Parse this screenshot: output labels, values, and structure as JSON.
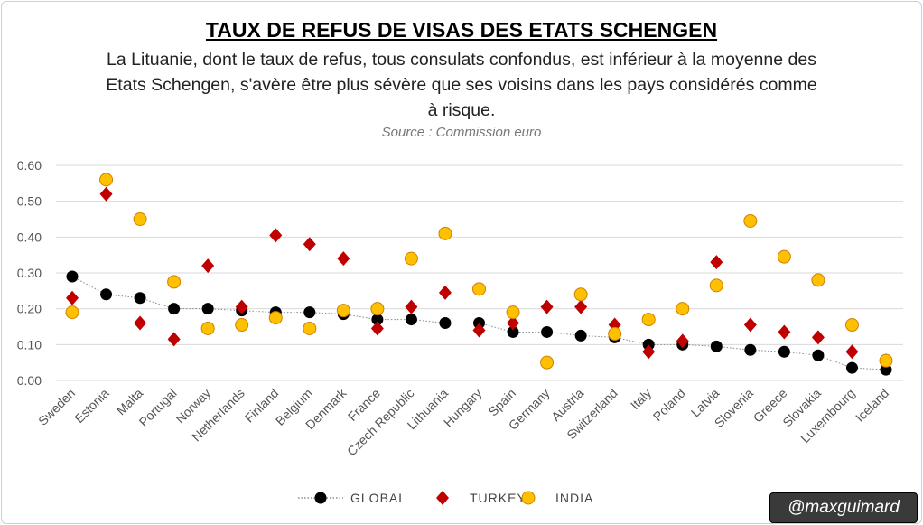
{
  "title": "TAUX DE REFUS DE VISAS DES ETATS SCHENGEN",
  "subtitle": "La Lituanie, dont le taux de refus, tous consulats confondus, est inférieur à la moyenne des Etats Schengen, s'avère être plus sévère que ses voisins dans les pays considérés comme à risque.",
  "source": "Source : Commission euro",
  "handle": "@maxguimard",
  "chart_data": {
    "type": "scatter",
    "ylim": [
      0,
      0.6
    ],
    "yticks": [
      "0.00",
      "0.10",
      "0.20",
      "0.30",
      "0.40",
      "0.50",
      "0.60"
    ],
    "grid": true,
    "legend_position": "bottom",
    "categories": [
      "Sweden",
      "Estonia",
      "Malta",
      "Portugal",
      "Norway",
      "Netherlands",
      "Finland",
      "Belgium",
      "Denmark",
      "France",
      "Czech Republic",
      "Lithuania",
      "Hungary",
      "Spain",
      "Germany",
      "Austria",
      "Switzerland",
      "Italy",
      "Poland",
      "Latvia",
      "Slovenia",
      "Greece",
      "Slovakia",
      "Luxembourg",
      "Iceland"
    ],
    "series": [
      {
        "name": "GLOBAL",
        "color": "#000000",
        "marker": "circle",
        "line": "dotted",
        "values": [
          0.29,
          0.24,
          0.23,
          0.2,
          0.2,
          0.195,
          0.19,
          0.19,
          0.185,
          0.17,
          0.17,
          0.16,
          0.16,
          0.135,
          0.135,
          0.125,
          0.12,
          0.1,
          0.1,
          0.095,
          0.085,
          0.08,
          0.07,
          0.035,
          0.03
        ]
      },
      {
        "name": "TURKEY",
        "color": "#c00000",
        "marker": "diamond",
        "values": [
          0.23,
          0.52,
          0.16,
          0.115,
          0.32,
          0.205,
          0.405,
          0.38,
          0.34,
          0.145,
          0.205,
          0.245,
          0.14,
          0.16,
          0.205,
          0.205,
          0.155,
          0.08,
          0.11,
          0.33,
          0.155,
          0.135,
          0.12,
          0.08,
          0.055
        ]
      },
      {
        "name": "INDIA",
        "color": "#ffc000",
        "marker": "circle",
        "values": [
          0.19,
          0.56,
          0.45,
          0.275,
          0.145,
          0.155,
          0.175,
          0.145,
          0.195,
          0.2,
          0.34,
          0.41,
          0.255,
          0.19,
          0.05,
          0.24,
          0.13,
          0.17,
          0.2,
          0.265,
          0.445,
          0.345,
          0.28,
          0.155,
          0.055
        ]
      }
    ]
  }
}
